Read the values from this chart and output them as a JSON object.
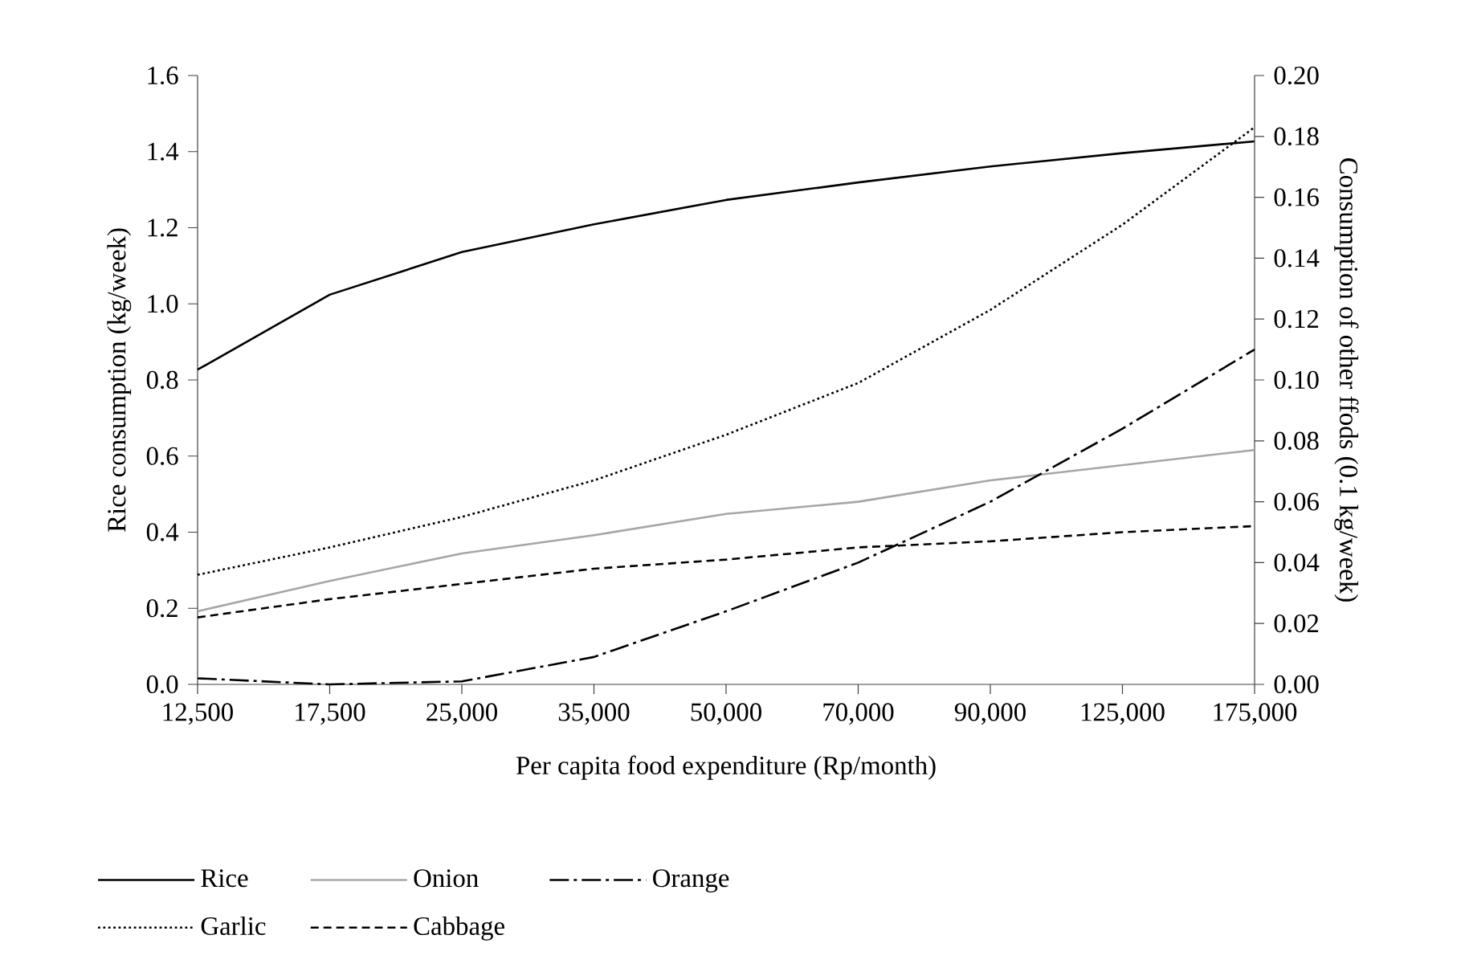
{
  "chart_data": {
    "type": "line",
    "xlabel": "Per capita food expenditure (Rp/month)",
    "ylabel": "Rice consumption (kg/week)",
    "y2label": "Consumption of other ffods (0.1 kg/week)",
    "categories": [
      "12,500",
      "17,500",
      "25,000",
      "35,000",
      "50,000",
      "70,000",
      "90,000",
      "125,000",
      "175,000"
    ],
    "ylim": [
      0,
      1.6
    ],
    "yticks": [
      {
        "value": 0,
        "label": "0.0"
      },
      {
        "value": 0.2,
        "label": "0.2"
      },
      {
        "value": 0.4,
        "label": "0.4"
      },
      {
        "value": 0.6,
        "label": "0.6"
      },
      {
        "value": 0.8,
        "label": "0.8"
      },
      {
        "value": 1.0,
        "label": "1.0"
      },
      {
        "value": 1.2,
        "label": "1.2"
      },
      {
        "value": 1.4,
        "label": "1.4"
      },
      {
        "value": 1.6,
        "label": "1.6"
      }
    ],
    "y2lim": [
      0,
      0.2
    ],
    "y2ticks": [
      {
        "value": 0,
        "label": "0.00"
      },
      {
        "value": 0.02,
        "label": "0.02"
      },
      {
        "value": 0.04,
        "label": "0.04"
      },
      {
        "value": 0.06,
        "label": "0.06"
      },
      {
        "value": 0.08,
        "label": "0.08"
      },
      {
        "value": 0.1,
        "label": "0.10"
      },
      {
        "value": 0.12,
        "label": "0.12"
      },
      {
        "value": 0.14,
        "label": "0.14"
      },
      {
        "value": 0.16,
        "label": "0.16"
      },
      {
        "value": 0.18,
        "label": "0.18"
      },
      {
        "value": 0.2,
        "label": "0.20"
      }
    ],
    "legend": "bottom",
    "grid": false,
    "marker": "none",
    "series": [
      {
        "name": "Rice",
        "color": "#000000",
        "line_style": "solid",
        "values": [
          0.827,
          1.024,
          1.136,
          1.209,
          1.273,
          1.319,
          1.361,
          1.396,
          1.427
        ]
      },
      {
        "name": "Onion",
        "color": "#a6a6a6",
        "line_style": "solid",
        "axis": "y2",
        "values": [
          0.024,
          0.034,
          0.043,
          0.049,
          0.056,
          0.06,
          0.067,
          0.072,
          0.077
        ]
      },
      {
        "name": "Orange",
        "color": "#000000",
        "line_style": "dashdot",
        "axis": "y2",
        "values": [
          0.002,
          0.0,
          0.001,
          0.009,
          0.024,
          0.04,
          0.06,
          0.084,
          0.11
        ]
      },
      {
        "name": "Garlic",
        "color": "#000000",
        "line_style": "dotted",
        "axis": "y2",
        "values": [
          0.036,
          0.045,
          0.055,
          0.067,
          0.082,
          0.099,
          0.123,
          0.151,
          0.183
        ]
      },
      {
        "name": "Cabbage",
        "color": "#000000",
        "line_style": "dashed",
        "axis": "y2",
        "values": [
          0.022,
          0.028,
          0.033,
          0.038,
          0.041,
          0.045,
          0.047,
          0.05,
          0.052
        ]
      }
    ]
  }
}
